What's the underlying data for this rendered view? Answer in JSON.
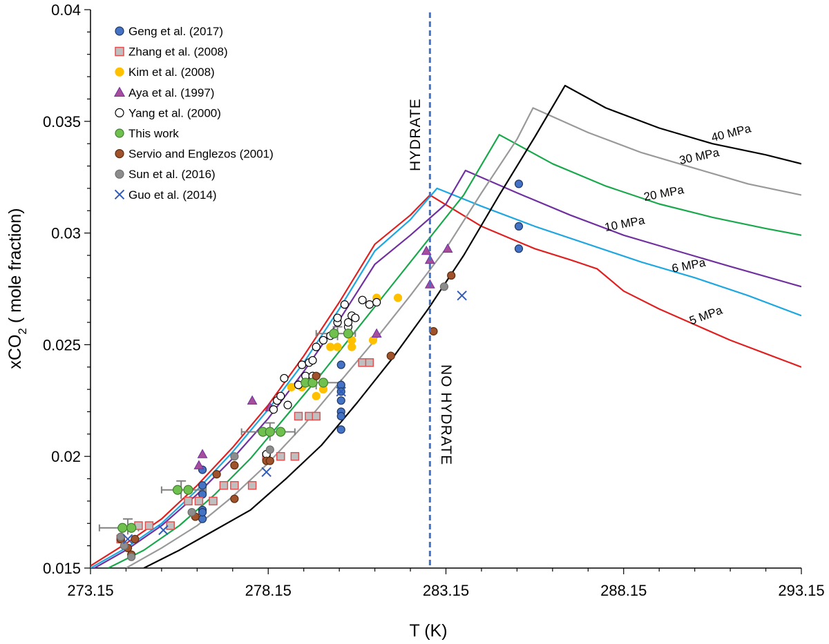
{
  "chart_data": {
    "type": "scatter",
    "xlabel": "T (K)",
    "ylabel_main": "xCO",
    "ylabel_sub": "2",
    "ylabel_rest": " ( mole fraction)",
    "xlim": [
      273.15,
      293.15
    ],
    "ylim": [
      0.015,
      0.04
    ],
    "xticks": [
      "273.15",
      "278.15",
      "283.15",
      "288.15",
      "293.15"
    ],
    "yticks": [
      "0.015",
      "0.02",
      "0.025",
      "0.03",
      "0.035",
      "0.04"
    ],
    "grid": false,
    "legend_position": "top-left",
    "boundary": {
      "x": 282.7,
      "color": "#4472c4"
    },
    "region_labels": {
      "left": "HYDRATE",
      "right": "NO HYDRATE"
    },
    "series": [
      {
        "name": "Geng et al. (2017)",
        "marker": "circle",
        "fill": "#4472c4",
        "stroke": "#1f3864",
        "points": [
          [
            276.3,
            0.0183
          ],
          [
            276.3,
            0.0194
          ],
          [
            276.3,
            0.0187
          ],
          [
            276.3,
            0.0176
          ],
          [
            276.3,
            0.0172
          ],
          [
            276.3,
            0.0175
          ],
          [
            280.2,
            0.0241
          ],
          [
            280.2,
            0.0232
          ],
          [
            280.2,
            0.0229
          ],
          [
            280.2,
            0.0225
          ],
          [
            280.2,
            0.022
          ],
          [
            280.2,
            0.0218
          ],
          [
            280.2,
            0.0212
          ],
          [
            285.2,
            0.0322
          ],
          [
            285.2,
            0.0303
          ],
          [
            285.2,
            0.0293
          ]
        ]
      },
      {
        "name": "Zhang et al. (2008)",
        "marker": "square",
        "fill": "#bfbfbf",
        "stroke": "#e05050",
        "points": [
          [
            274.0,
            0.0163
          ],
          [
            274.5,
            0.0169
          ],
          [
            274.8,
            0.0169
          ],
          [
            275.4,
            0.0169
          ],
          [
            275.9,
            0.018
          ],
          [
            276.2,
            0.018
          ],
          [
            276.6,
            0.018
          ],
          [
            276.9,
            0.0187
          ],
          [
            277.2,
            0.0187
          ],
          [
            277.7,
            0.0187
          ],
          [
            278.1,
            0.02
          ],
          [
            278.5,
            0.02
          ],
          [
            278.9,
            0.02
          ],
          [
            279.0,
            0.0218
          ],
          [
            279.3,
            0.0218
          ],
          [
            279.5,
            0.0218
          ],
          [
            280.8,
            0.0242
          ],
          [
            281.0,
            0.0242
          ]
        ]
      },
      {
        "name": "Kim et al. (2008)",
        "marker": "circle",
        "fill": "#ffc000",
        "stroke": "#ffc000",
        "points": [
          [
            278.8,
            0.0231
          ],
          [
            279.1,
            0.0231
          ],
          [
            279.3,
            0.0233
          ],
          [
            279.5,
            0.0227
          ],
          [
            279.7,
            0.023
          ],
          [
            279.9,
            0.0249
          ],
          [
            280.1,
            0.0249
          ],
          [
            280.5,
            0.0249
          ],
          [
            280.5,
            0.0252
          ],
          [
            281.1,
            0.0252
          ],
          [
            281.2,
            0.0271
          ],
          [
            281.8,
            0.0271
          ]
        ]
      },
      {
        "name": "Aya et al. (1997)",
        "marker": "triangle",
        "fill": "#a64d9b",
        "stroke": "#7030a0",
        "points": [
          [
            276.2,
            0.0196
          ],
          [
            276.3,
            0.0201
          ],
          [
            277.7,
            0.0225
          ],
          [
            278.2,
            0.0222
          ],
          [
            281.2,
            0.0255
          ],
          [
            282.6,
            0.0292
          ],
          [
            282.7,
            0.0288
          ],
          [
            282.7,
            0.0277
          ],
          [
            283.2,
            0.0293
          ]
        ]
      },
      {
        "name": "Yang et al. (2000)",
        "marker": "circle",
        "fill": "#ffffff",
        "stroke": "#000000",
        "points": [
          [
            278.1,
            0.0201
          ],
          [
            278.3,
            0.0221
          ],
          [
            278.4,
            0.0225
          ],
          [
            278.5,
            0.0227
          ],
          [
            278.6,
            0.0235
          ],
          [
            278.7,
            0.0223
          ],
          [
            279.0,
            0.0232
          ],
          [
            279.1,
            0.0241
          ],
          [
            279.2,
            0.0236
          ],
          [
            279.3,
            0.0242
          ],
          [
            279.4,
            0.0236
          ],
          [
            279.4,
            0.0243
          ],
          [
            279.5,
            0.0249
          ],
          [
            279.7,
            0.0252
          ],
          [
            279.9,
            0.0254
          ],
          [
            280.1,
            0.026
          ],
          [
            280.1,
            0.0262
          ],
          [
            280.3,
            0.0268
          ],
          [
            280.4,
            0.0258
          ],
          [
            280.4,
            0.026
          ],
          [
            280.5,
            0.0263
          ],
          [
            280.6,
            0.0262
          ],
          [
            280.8,
            0.027
          ],
          [
            281.0,
            0.0268
          ],
          [
            281.2,
            0.0269
          ]
        ]
      },
      {
        "name": "This work",
        "marker": "circle",
        "fill": "#70c050",
        "stroke": "#3f7f2f",
        "points": [
          [
            274.05,
            0.0168
          ],
          [
            274.3,
            0.0168
          ],
          [
            275.6,
            0.0185
          ],
          [
            275.9,
            0.0185
          ],
          [
            278.0,
            0.0211
          ],
          [
            278.2,
            0.0211
          ],
          [
            278.5,
            0.0211
          ],
          [
            279.2,
            0.0233
          ],
          [
            279.4,
            0.0233
          ],
          [
            279.7,
            0.0233
          ],
          [
            280.0,
            0.0255
          ],
          [
            280.4,
            0.0255
          ]
        ]
      },
      {
        "name": "Servio and Englezos (2001)",
        "marker": "circle",
        "fill": "#a0522d",
        "stroke": "#5c2e0e",
        "points": [
          [
            274.0,
            0.0163
          ],
          [
            274.2,
            0.0159
          ],
          [
            274.3,
            0.0156
          ],
          [
            274.4,
            0.0163
          ],
          [
            276.1,
            0.0173
          ],
          [
            276.7,
            0.0192
          ],
          [
            277.2,
            0.0196
          ],
          [
            277.2,
            0.0181
          ],
          [
            278.1,
            0.0198
          ],
          [
            278.2,
            0.0198
          ],
          [
            279.5,
            0.0236
          ],
          [
            281.6,
            0.0245
          ],
          [
            282.8,
            0.0256
          ],
          [
            283.3,
            0.0281
          ]
        ]
      },
      {
        "name": "Sun et al. (2016)",
        "marker": "circle",
        "fill": "#8c8c8c",
        "stroke": "#6e6e6e",
        "points": [
          [
            274.0,
            0.0164
          ],
          [
            274.1,
            0.016
          ],
          [
            274.3,
            0.0155
          ],
          [
            276.0,
            0.0175
          ],
          [
            277.2,
            0.02
          ],
          [
            278.2,
            0.0203
          ],
          [
            283.1,
            0.0276
          ]
        ]
      },
      {
        "name": "Guo et al. (2014)",
        "marker": "x",
        "fill": "none",
        "stroke": "#2e5cb8",
        "points": [
          [
            274.2,
            0.0163
          ],
          [
            275.2,
            0.0167
          ],
          [
            278.1,
            0.0193
          ],
          [
            280.2,
            0.0229
          ],
          [
            283.6,
            0.0272
          ]
        ]
      }
    ],
    "curves": [
      {
        "name": "5 MPa",
        "color": "#e02020",
        "x": [
          273.15,
          274.15,
          275.15,
          276.15,
          277.15,
          278.15,
          279.15,
          280.15,
          281.15,
          282.15,
          282.7,
          284.15,
          285.65,
          286.65,
          287.4,
          288.15,
          289.15,
          290.15,
          291.15,
          292.15,
          293.15
        ],
        "y": [
          0.0151,
          0.0161,
          0.0172,
          0.0187,
          0.0204,
          0.0223,
          0.0245,
          0.0269,
          0.0295,
          0.0308,
          0.0317,
          0.0303,
          0.0293,
          0.0288,
          0.0284,
          0.0274,
          0.0266,
          0.0259,
          0.0252,
          0.0246,
          0.024
        ]
      },
      {
        "name": "6 MPa",
        "color": "#1ea7e0",
        "x": [
          273.15,
          274.15,
          275.15,
          276.15,
          277.15,
          278.15,
          279.15,
          280.15,
          281.15,
          282.15,
          282.9,
          284.15,
          285.65,
          287.15,
          288.65,
          290.15,
          291.65,
          293.15
        ],
        "y": [
          0.015,
          0.0159,
          0.017,
          0.0185,
          0.0202,
          0.0221,
          0.0242,
          0.0266,
          0.0292,
          0.0306,
          0.032,
          0.0312,
          0.0303,
          0.0295,
          0.0287,
          0.028,
          0.0272,
          0.0263
        ]
      },
      {
        "name": "10 MPa",
        "color": "#7030a0",
        "x": [
          273.15,
          274.15,
          275.15,
          276.15,
          277.15,
          278.15,
          279.15,
          280.15,
          281.15,
          282.15,
          283.15,
          283.7,
          285.15,
          286.65,
          288.15,
          289.65,
          291.15,
          293.15
        ],
        "y": [
          0.0149,
          0.0158,
          0.0169,
          0.0183,
          0.0199,
          0.0217,
          0.0238,
          0.0261,
          0.0286,
          0.0299,
          0.0313,
          0.0328,
          0.0318,
          0.0308,
          0.0299,
          0.0292,
          0.0285,
          0.0276
        ]
      },
      {
        "name": "20 MPa",
        "color": "#19a84b",
        "x": [
          273.65,
          274.65,
          275.65,
          276.65,
          277.65,
          278.65,
          279.65,
          280.65,
          281.65,
          282.65,
          283.65,
          284.65,
          286.15,
          287.65,
          289.15,
          290.65,
          292.15,
          293.15
        ],
        "y": [
          0.015,
          0.0158,
          0.0169,
          0.0183,
          0.0199,
          0.0218,
          0.0237,
          0.0257,
          0.0277,
          0.0297,
          0.0317,
          0.0344,
          0.0331,
          0.0321,
          0.0313,
          0.0307,
          0.0302,
          0.0299
        ]
      },
      {
        "name": "30 MPa",
        "color": "#999999",
        "x": [
          274.15,
          275.15,
          276.15,
          277.15,
          278.15,
          279.15,
          280.15,
          281.15,
          282.15,
          283.15,
          284.15,
          285.15,
          285.6,
          287.15,
          288.65,
          290.15,
          291.65,
          293.15
        ],
        "y": [
          0.015,
          0.0159,
          0.0169,
          0.0182,
          0.0197,
          0.0214,
          0.0233,
          0.0252,
          0.0272,
          0.0293,
          0.0318,
          0.0342,
          0.0356,
          0.0345,
          0.0336,
          0.0329,
          0.0322,
          0.0317
        ]
      },
      {
        "name": "40 MPa",
        "color": "#000000",
        "x": [
          274.65,
          275.65,
          276.65,
          277.65,
          278.65,
          279.65,
          280.65,
          281.65,
          282.65,
          283.65,
          284.65,
          285.65,
          286.5,
          287.65,
          289.15,
          290.65,
          292.15,
          293.15
        ],
        "y": [
          0.015,
          0.0158,
          0.0167,
          0.0176,
          0.019,
          0.0205,
          0.0224,
          0.0244,
          0.0266,
          0.029,
          0.0317,
          0.0343,
          0.0366,
          0.0356,
          0.0347,
          0.034,
          0.0335,
          0.0331
        ]
      }
    ],
    "errorbars": [
      {
        "y": 0.0168,
        "x0": 273.4,
        "x1": 274.5,
        "y0": 0.0165,
        "y1": 0.0172,
        "xc": 274.2
      },
      {
        "y": 0.0185,
        "x0": 275.15,
        "x1": 276.4,
        "y0": 0.0181,
        "y1": 0.0189,
        "xc": 275.7
      },
      {
        "y": 0.0211,
        "x0": 277.4,
        "x1": 278.9,
        "y0": 0.0207,
        "y1": 0.0215,
        "xc": 278.2
      },
      {
        "y": 0.0233,
        "x0": 279.0,
        "x1": 280.2,
        "y0": 0.023,
        "y1": 0.0237,
        "xc": 279.5
      },
      {
        "y": 0.0255,
        "x0": 279.5,
        "x1": 280.6,
        "y0": 0.0252,
        "y1": 0.0258,
        "xc": 280.1
      }
    ]
  }
}
